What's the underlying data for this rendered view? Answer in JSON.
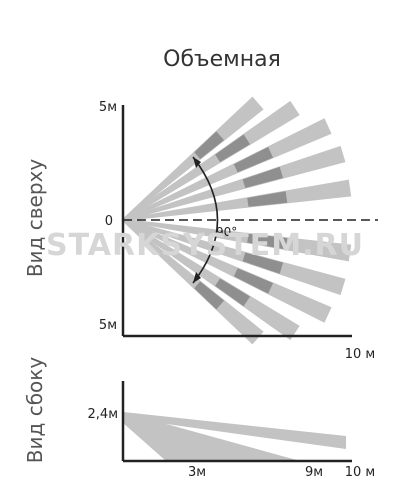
{
  "title": "Объемная",
  "top_view": {
    "label": "Вид сверху",
    "y_top": "5м",
    "y_center": "0",
    "y_bottom": "5м",
    "x_end": "10 м",
    "angle": "90°"
  },
  "side_view": {
    "label": "Вид сбоку",
    "height": "2,4м",
    "x_near": "3м",
    "x_mid": "9м",
    "x_end": "10 м"
  },
  "watermark": "STARKSYSTEM.RU",
  "colors": {
    "beam": "#c3c3c3",
    "beam_dark": "#8f8f8f",
    "axis": "#222222"
  }
}
